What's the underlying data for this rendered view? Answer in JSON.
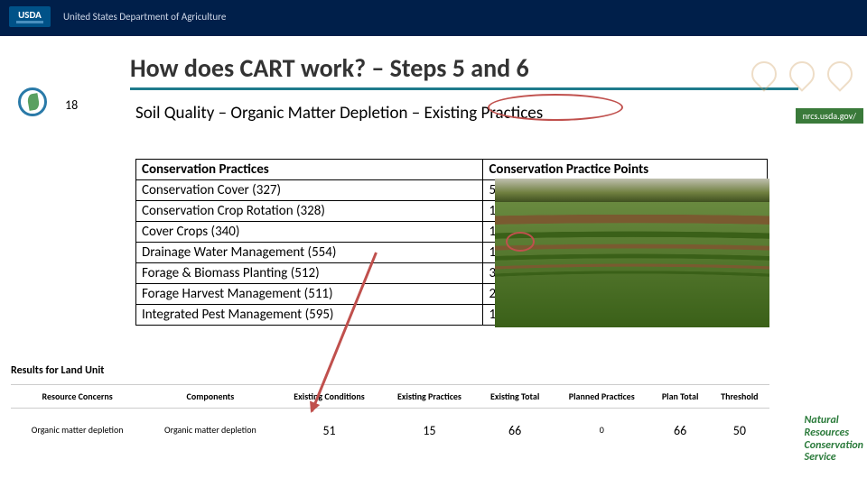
{
  "header": {
    "logo_text": "USDA",
    "dept_text": "United States Department of Agriculture"
  },
  "title": "How does CART work? – Steps 5 and 6",
  "subtitle": "Soil Quality – Organic Matter Depletion – Existing Practices",
  "practice_table": {
    "col1_header": "Conservation Practices",
    "col2_header": "Conservation Practice Points",
    "rows": [
      {
        "practice": "Conservation Cover (327)",
        "points": "50"
      },
      {
        "practice": "Conservation Crop Rotation (328)",
        "points": "10"
      },
      {
        "practice": "Cover Crops (340)",
        "points": "15"
      },
      {
        "practice": "Drainage Water Management (554)",
        "points": "15"
      },
      {
        "practice": "Forage & Biomass Planting (512)",
        "points": "30"
      },
      {
        "practice": "Forage Harvest Management (511)",
        "points": "20"
      },
      {
        "practice": "Integrated Pest Management (595)",
        "points": "10"
      }
    ]
  },
  "results": {
    "section_label": "Results for Land Unit",
    "columns": [
      "Resource Concerns",
      "Components",
      "Existing Conditions",
      "Existing Practices",
      "Existing Total",
      "Planned Practices",
      "Plan Total",
      "Threshold"
    ],
    "row": {
      "concern": "Organic matter depletion",
      "component": "Organic matter depletion",
      "existing_conditions": "51",
      "existing_practices": "15",
      "existing_total": "66",
      "planned_practices": "0",
      "plan_total": "66",
      "threshold": "50"
    }
  },
  "nrcs": {
    "l1": "Natural",
    "l2": "Resources",
    "l3": "Conservation",
    "l4": "Service",
    "url": "nrcs.usda.gov/"
  },
  "page_number": "18"
}
